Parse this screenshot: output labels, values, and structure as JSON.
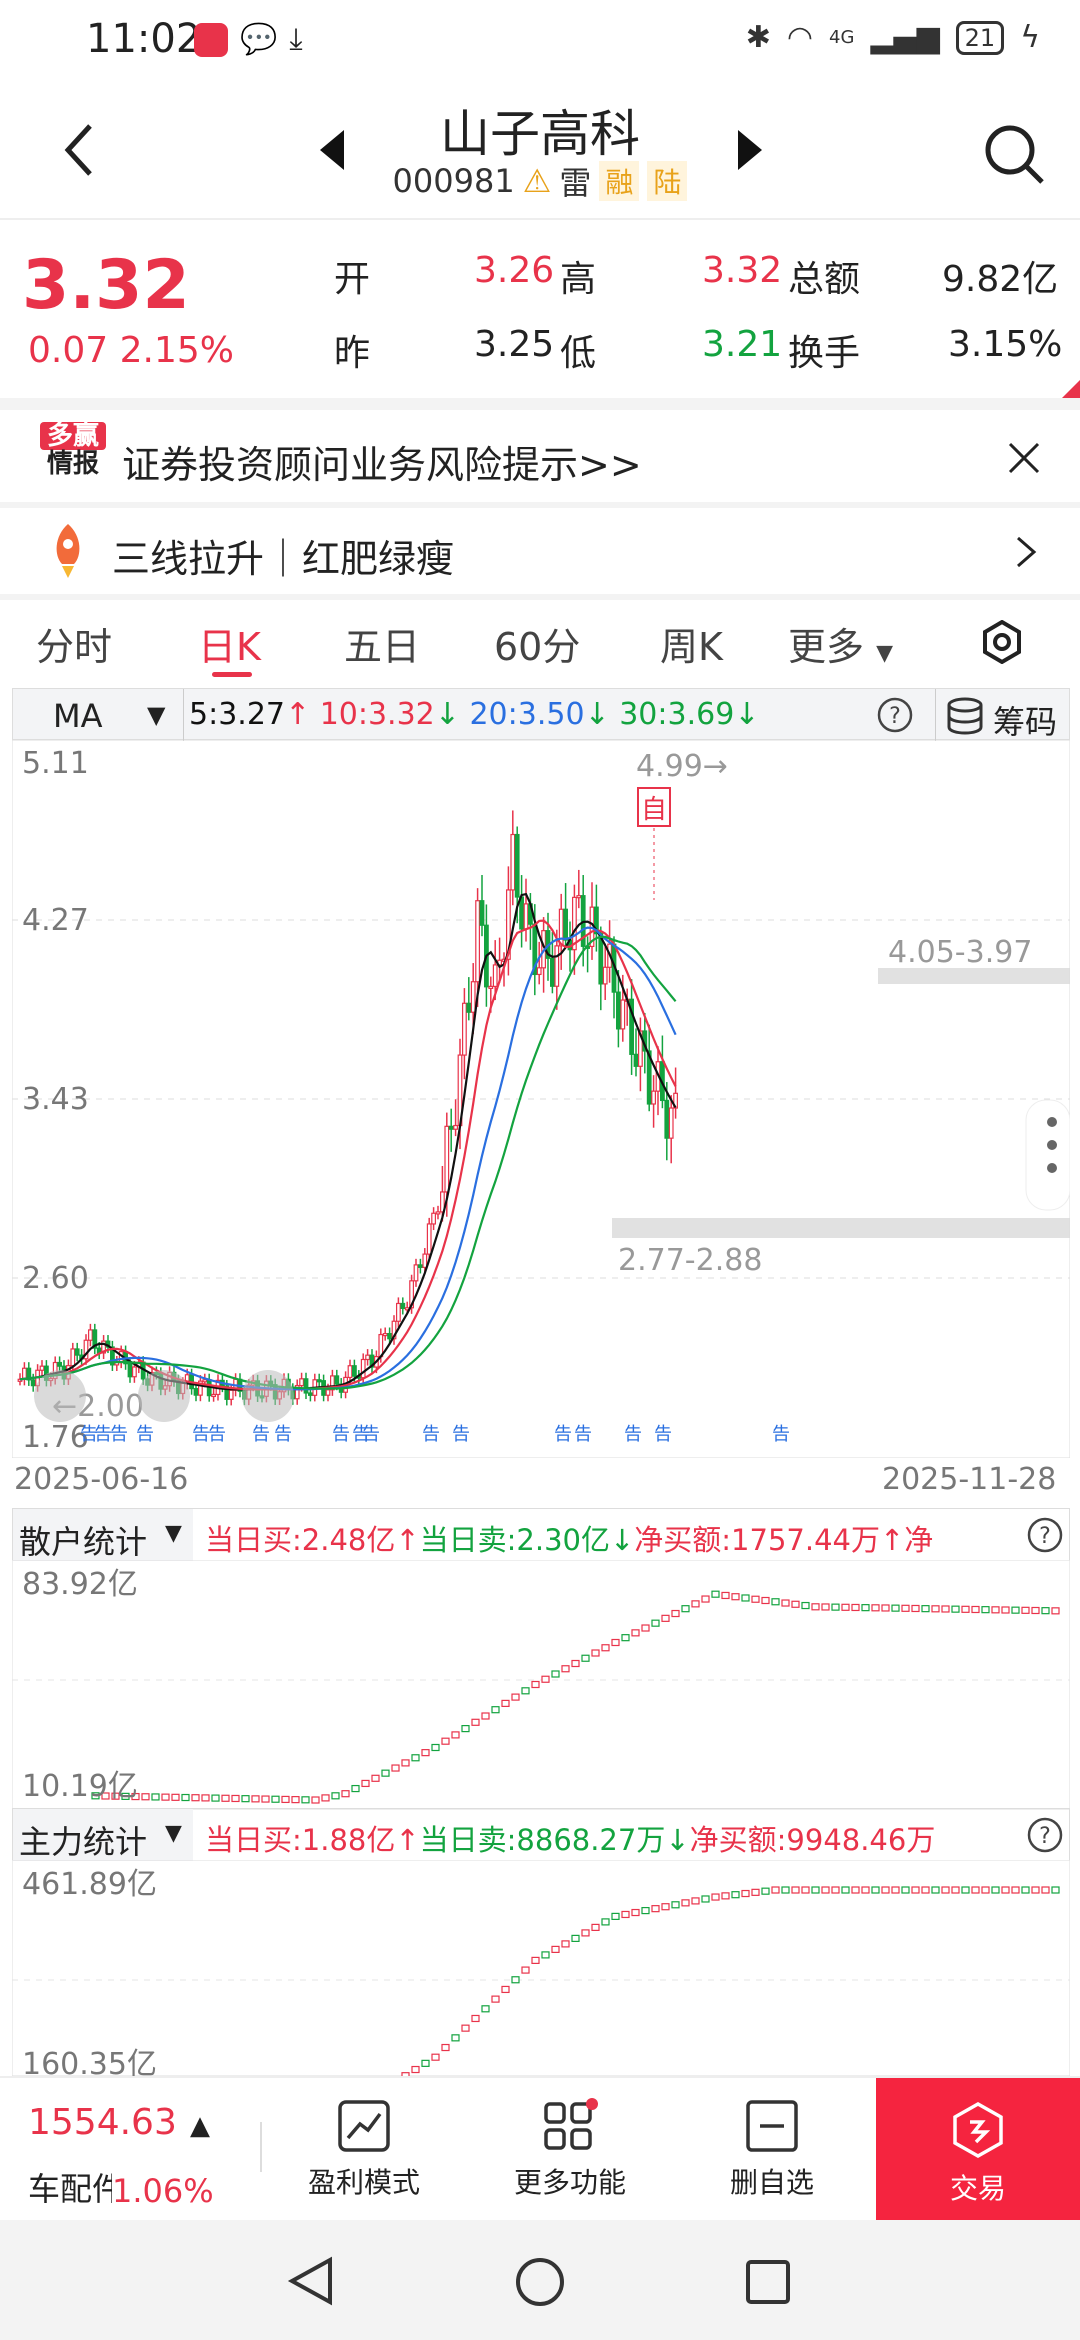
{
  "status_bar": {
    "time": "11:02",
    "battery": "21",
    "net": "4G"
  },
  "header": {
    "title": "山子高科",
    "code": "000981",
    "tags": [
      "雷",
      "融",
      "陆"
    ]
  },
  "quote": {
    "price": "3.32",
    "change": "0.07",
    "change_pct": "2.15%",
    "open_label": "开",
    "open": "3.26",
    "high_label": "高",
    "high": "3.32",
    "amount_label": "总额",
    "amount": "9.82亿",
    "prev_label": "昨",
    "prev": "3.25",
    "low_label": "低",
    "low": "3.21",
    "turnover_label": "换手",
    "turnover": "3.15%"
  },
  "banners": {
    "risk_logo_top": "多赢",
    "risk_logo_bottom": "情报",
    "risk_text": "证券投资顾问业务风险提示>>",
    "strategy_text": "三线拉升｜红肥绿瘦"
  },
  "tabs": [
    "分时",
    "日K",
    "五日",
    "60分",
    "周K",
    "更多"
  ],
  "active_tab": "日K",
  "ma": {
    "selector": "MA",
    "ma5": "5:3.27",
    "ma10": "10:3.32",
    "ma20": "20:3.50",
    "ma30": "30:3.69",
    "chips_label": "筹码"
  },
  "kline": {
    "y_labels": [
      "5.11",
      "4.27",
      "3.43",
      "2.60",
      "1.76"
    ],
    "start_date": "2025-06-16",
    "end_date": "2025-11-28",
    "max_label": "4.99→",
    "min_label": "←2.00",
    "self_label": "自",
    "zone_upper": "4.05-3.97",
    "zone_lower": "2.77-2.88",
    "event_label": "告"
  },
  "retail": {
    "selector": "散户统计",
    "buy": "当日买:2.48亿↑",
    "sell": "当日卖:2.30亿↓",
    "net": "净买额:1757.44万↑",
    "net_more": "净",
    "y_top": "83.92亿",
    "y_bottom": "10.19亿"
  },
  "main": {
    "selector": "主力统计",
    "buy": "当日买:1.88亿↑",
    "sell": "当日卖:8868.27万↓",
    "net": "净买额:9948.46万",
    "y_top": "461.89亿",
    "y_bottom": "160.35亿"
  },
  "bottom": {
    "index_value": "1554.63",
    "index_name": "车配件",
    "index_pct": "1.06%",
    "items": [
      "盈利模式",
      "更多功能",
      "删自选",
      "交易"
    ]
  },
  "colors": {
    "up": "#e8334a",
    "down": "#13a33f",
    "ma5": "#111111",
    "ma10": "#e8334a",
    "ma20": "#2a6fe0",
    "ma30": "#13a33f",
    "trade": "#f5243f"
  }
}
